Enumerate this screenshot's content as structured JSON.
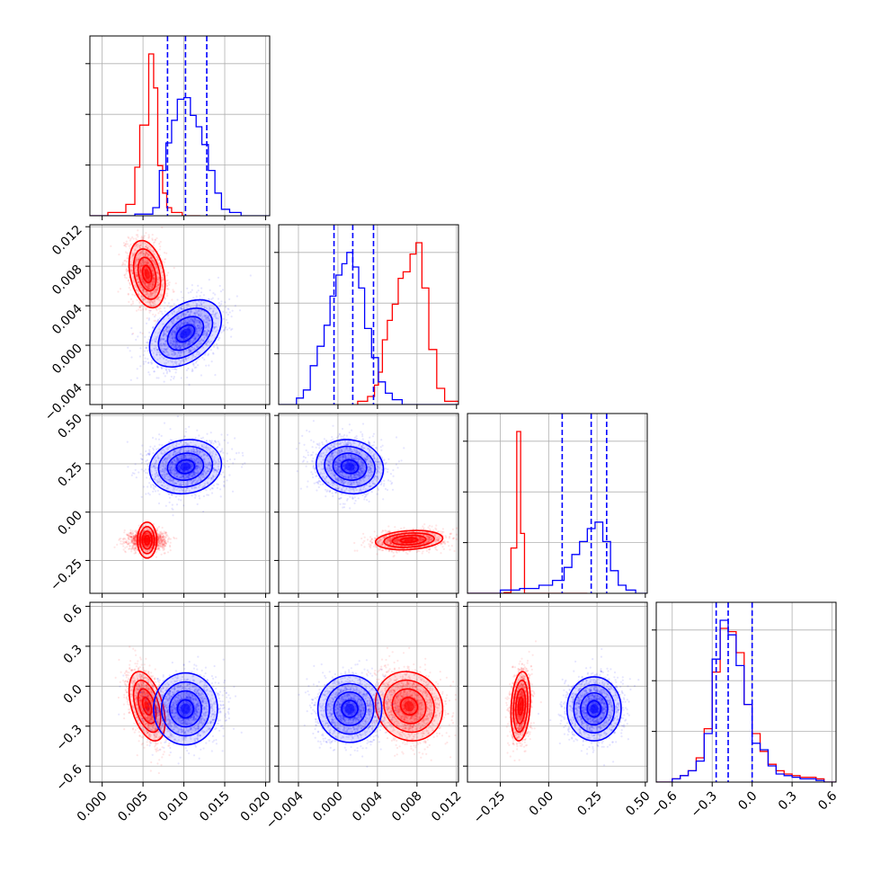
{
  "figure": {
    "layout": "corner-plot"
  },
  "colors": {
    "series_a": "#ff0000",
    "series_b": "#0000ff"
  },
  "chart_data": {
    "type": "corner",
    "n_params": 4,
    "grid": true,
    "params": [
      {
        "range": [
          -0.0015,
          0.0205
        ],
        "ticks": [
          0.0,
          0.005,
          0.01,
          0.015,
          0.02
        ],
        "tick_labels": [
          "0.000",
          "0.005",
          "0.010",
          "0.015",
          "0.020"
        ]
      },
      {
        "range": [
          -0.006,
          0.0122
        ],
        "ticks": [
          -0.004,
          0.0,
          0.004,
          0.008,
          0.012
        ],
        "tick_labels": [
          "−0.004",
          "0.000",
          "0.004",
          "0.008",
          "0.012"
        ]
      },
      {
        "range": [
          -0.42,
          0.51
        ],
        "ticks": [
          -0.25,
          0.0,
          0.25,
          0.5
        ],
        "tick_labels": [
          "−0.25",
          "0.00",
          "0.25",
          "0.50"
        ]
      },
      {
        "range": [
          -0.72,
          0.63
        ],
        "ticks": [
          -0.6,
          -0.3,
          0.0,
          0.3,
          0.6
        ],
        "tick_labels": [
          "−0.6",
          "−0.3",
          "0.0",
          "0.3",
          "0.6"
        ]
      }
    ],
    "series": [
      {
        "color_key": "series_a",
        "means": [
          0.0055,
          0.0072,
          -0.145,
          -0.15
        ],
        "stds": [
          0.0011,
          0.0017,
          0.025,
          0.13
        ],
        "correlations": {
          "0-1": -0.3,
          "0-2": 0.0,
          "0-3": -0.45,
          "1-2": 0.2,
          "1-3": -0.1,
          "2-3": 0.2
        },
        "histograms": [
          {
            "edges": [
              -0.0015,
              0.0007,
              0.0029,
              0.004,
              0.0046,
              0.0057,
              0.0063,
              0.0068,
              0.0074,
              0.0079,
              0.0085,
              0.0098,
              0.012
            ],
            "counts": [
              0.0,
              0.02,
              0.07,
              0.3,
              0.56,
              1.0,
              0.79,
              0.31,
              0.14,
              0.05,
              0.02,
              0.0
            ]
          },
          {
            "edges": [
              0.002,
              0.003,
              0.0037,
              0.0041,
              0.0045,
              0.005,
              0.0055,
              0.0061,
              0.0066,
              0.0073,
              0.0079,
              0.0085,
              0.0092,
              0.01,
              0.0108,
              0.0122
            ],
            "counts": [
              0.02,
              0.05,
              0.12,
              0.2,
              0.4,
              0.52,
              0.62,
              0.78,
              0.82,
              0.93,
              1.0,
              0.72,
              0.34,
              0.1,
              0.02
            ]
          },
          {
            "edges": [
              -0.42,
              -0.23,
              -0.195,
              -0.165,
              -0.145,
              -0.125,
              -0.105,
              0.0,
              0.2
            ],
            "counts": [
              0.0,
              0.005,
              0.28,
              1.0,
              0.37,
              0.0,
              0.0,
              0.0
            ]
          },
          {
            "edges": [
              -0.72,
              -0.6,
              -0.54,
              -0.48,
              -0.42,
              -0.36,
              -0.3,
              -0.24,
              -0.18,
              -0.12,
              -0.06,
              0.0,
              0.06,
              0.12,
              0.18,
              0.24,
              0.3,
              0.36,
              0.42,
              0.48,
              0.54,
              0.63
            ],
            "counts": [
              0.0,
              0.02,
              0.04,
              0.07,
              0.15,
              0.33,
              0.68,
              0.95,
              0.93,
              0.8,
              0.48,
              0.3,
              0.19,
              0.11,
              0.07,
              0.05,
              0.04,
              0.03,
              0.03,
              0.02,
              0.0
            ]
          }
        ]
      },
      {
        "color_key": "series_b",
        "means": [
          0.0102,
          0.0012,
          0.235,
          -0.17
        ],
        "stds": [
          0.0022,
          0.0017,
          0.07,
          0.12
        ],
        "correlations": {
          "0-1": 0.4,
          "0-2": 0.1,
          "0-3": 0.0,
          "1-2": -0.1,
          "1-3": 0.0,
          "2-3": 0.0
        },
        "quantiles": [
          [
            0.008,
            0.0102,
            0.0128
          ],
          [
            -0.0004,
            0.0015,
            0.0036
          ],
          [
            0.07,
            0.22,
            0.3
          ],
          [
            -0.27,
            -0.18,
            0.0
          ]
        ],
        "histograms": [
          {
            "edges": [
              -0.0015,
              0.004,
              0.0062,
              0.007,
              0.0078,
              0.0085,
              0.0092,
              0.01,
              0.0108,
              0.0115,
              0.0122,
              0.013,
              0.0138,
              0.0146,
              0.0156,
              0.017,
              0.0205
            ],
            "counts": [
              0.0,
              0.01,
              0.05,
              0.28,
              0.45,
              0.59,
              0.72,
              0.73,
              0.62,
              0.55,
              0.44,
              0.28,
              0.14,
              0.04,
              0.02,
              0.0
            ]
          },
          {
            "edges": [
              -0.006,
              -0.0042,
              -0.0035,
              -0.0028,
              -0.0021,
              -0.0014,
              -0.0008,
              -0.0002,
              0.0004,
              0.0009,
              0.0015,
              0.0021,
              0.0027,
              0.0034,
              0.0041,
              0.0048,
              0.0055,
              0.0065,
              0.0122
            ],
            "counts": [
              0.0,
              0.04,
              0.09,
              0.24,
              0.36,
              0.49,
              0.67,
              0.8,
              0.87,
              0.94,
              0.85,
              0.72,
              0.47,
              0.29,
              0.14,
              0.07,
              0.03,
              0.0
            ]
          },
          {
            "edges": [
              -0.42,
              -0.25,
              -0.15,
              -0.05,
              0.02,
              0.08,
              0.12,
              0.16,
              0.2,
              0.24,
              0.28,
              0.32,
              0.36,
              0.4,
              0.45,
              0.51
            ],
            "counts": [
              0.0,
              0.02,
              0.03,
              0.05,
              0.08,
              0.16,
              0.24,
              0.32,
              0.4,
              0.44,
              0.32,
              0.14,
              0.05,
              0.02,
              0.0
            ]
          },
          {
            "edges": [
              -0.72,
              -0.6,
              -0.54,
              -0.48,
              -0.42,
              -0.36,
              -0.3,
              -0.24,
              -0.18,
              -0.12,
              -0.06,
              0.0,
              0.06,
              0.12,
              0.18,
              0.24,
              0.3,
              0.36,
              0.42,
              0.48,
              0.54,
              0.63
            ],
            "counts": [
              0.0,
              0.02,
              0.04,
              0.07,
              0.13,
              0.3,
              0.76,
              1.0,
              0.91,
              0.72,
              0.48,
              0.24,
              0.2,
              0.1,
              0.05,
              0.04,
              0.03,
              0.02,
              0.02,
              0.01,
              0.0
            ]
          }
        ]
      }
    ]
  }
}
